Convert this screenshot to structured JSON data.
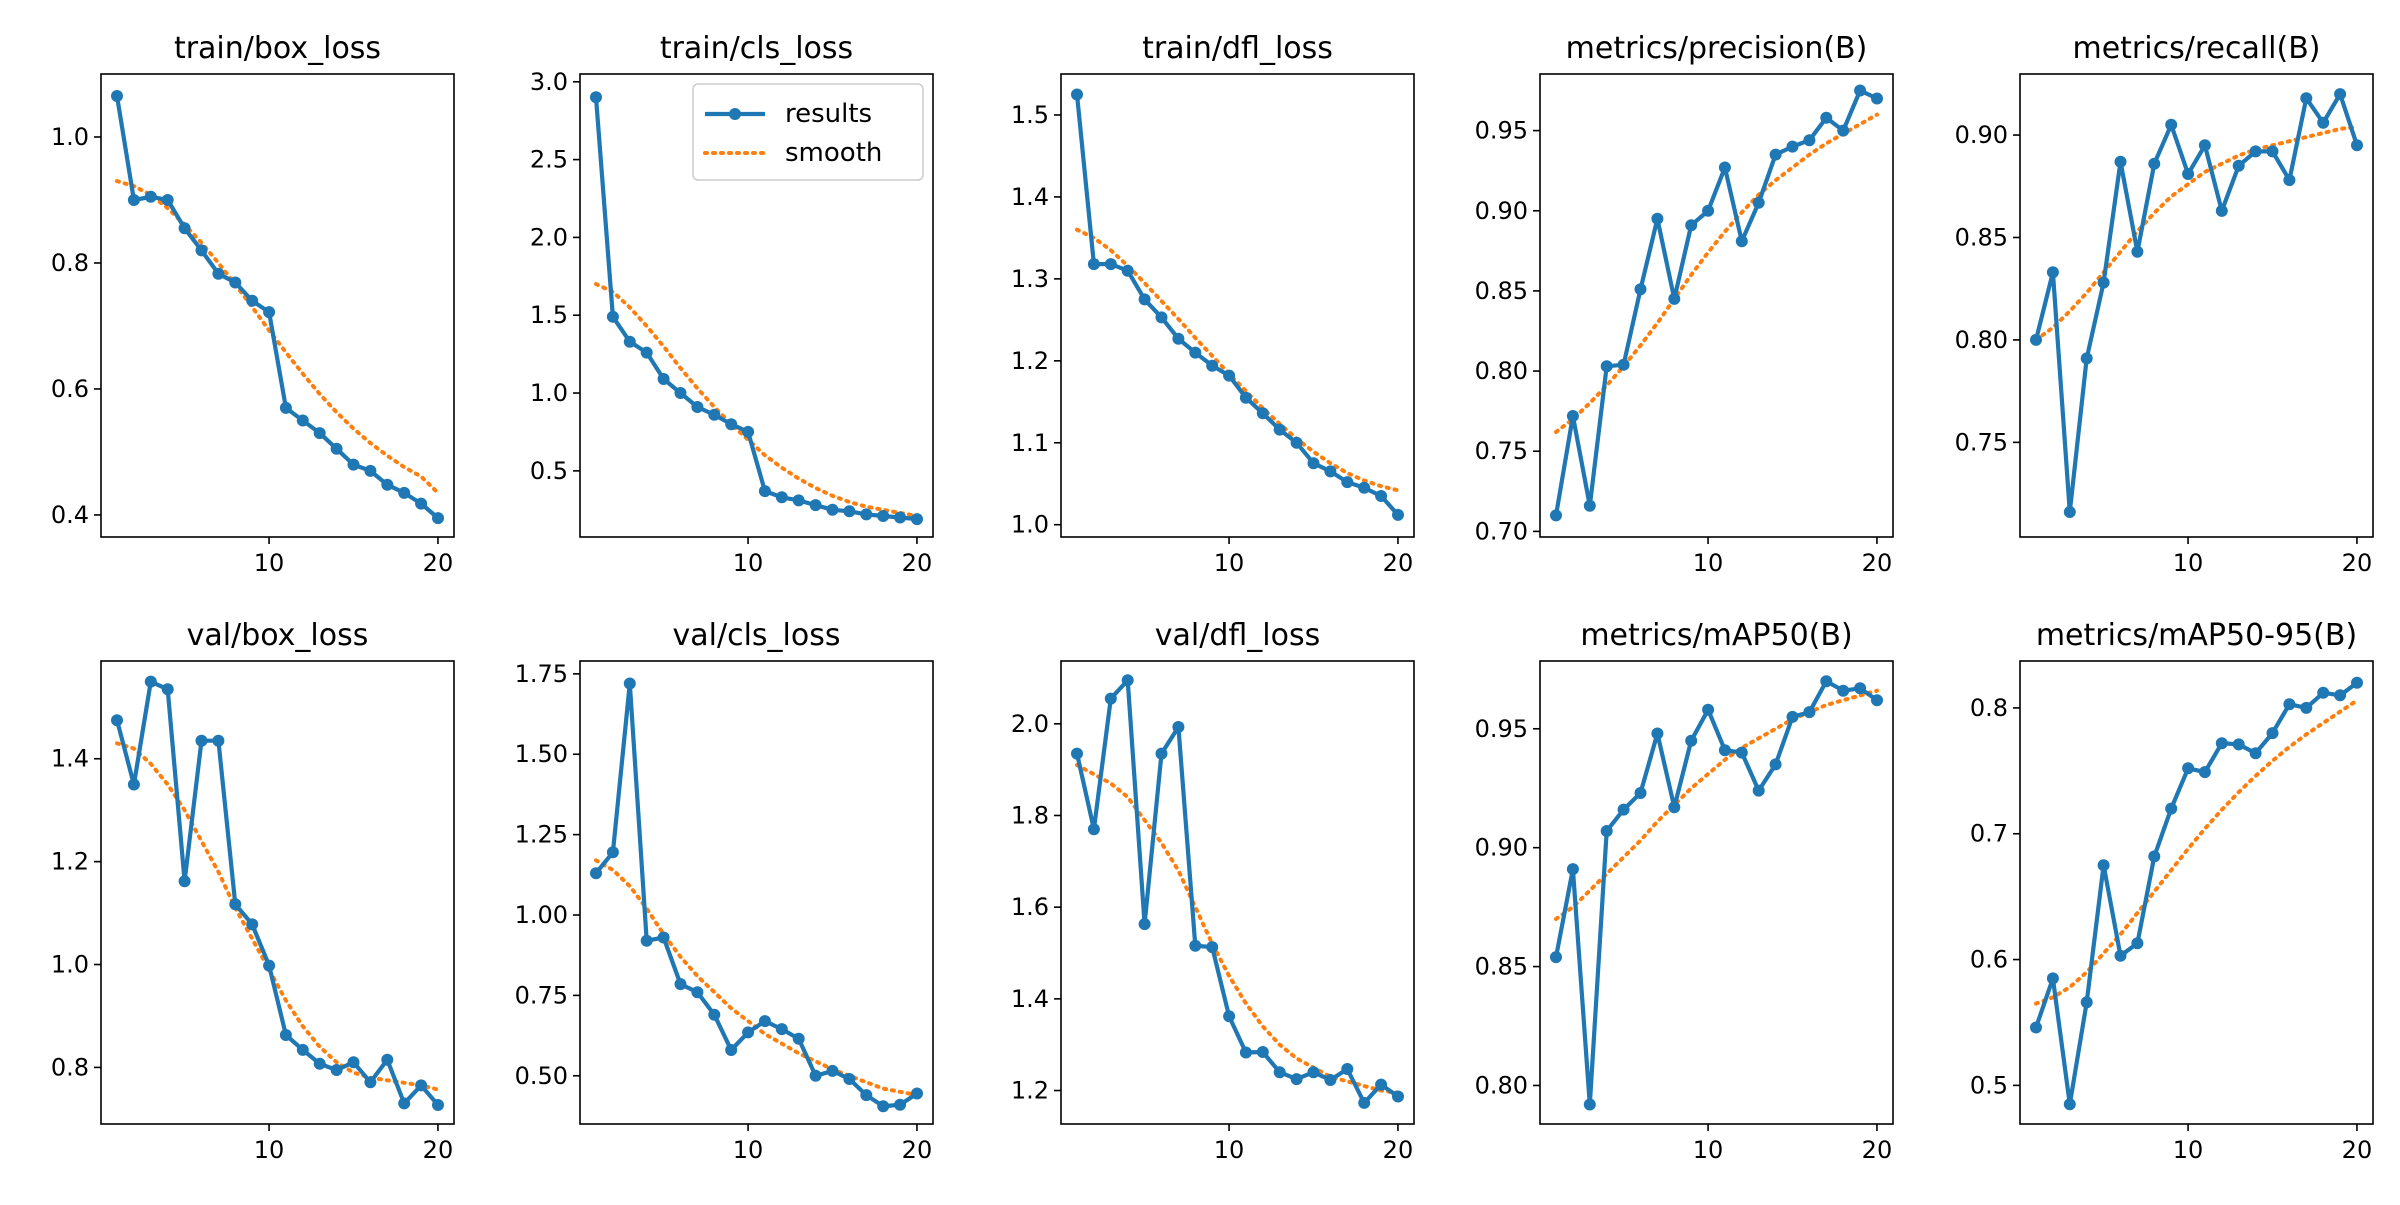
{
  "colors": {
    "results": "#1f77b4",
    "smooth": "#ff7f0e",
    "axes": "#000000",
    "background": "#ffffff"
  },
  "legend": {
    "results_label": "results",
    "smooth_label": "smooth",
    "location": "upper-right",
    "panel": "train/cls_loss"
  },
  "chart_data": [
    {
      "type": "line",
      "title": "train/box_loss",
      "x": [
        1,
        2,
        3,
        4,
        5,
        6,
        7,
        8,
        9,
        10,
        11,
        12,
        13,
        14,
        15,
        16,
        17,
        18,
        19,
        20
      ],
      "xlim": [
        0.05,
        20.95
      ],
      "xticks": [
        10,
        20
      ],
      "ylim": [
        0.365,
        1.1
      ],
      "yticks": [
        0.4,
        0.6,
        0.8,
        1.0
      ],
      "ytick_labels": [
        "0.4",
        "0.6",
        "0.8",
        "1.0"
      ],
      "series": [
        {
          "name": "results",
          "values": [
            1.065,
            0.9,
            0.905,
            0.9,
            0.855,
            0.82,
            0.783,
            0.769,
            0.74,
            0.722,
            0.57,
            0.55,
            0.53,
            0.505,
            0.48,
            0.47,
            0.448,
            0.435,
            0.418,
            0.395
          ]
        },
        {
          "name": "smooth",
          "values": [
            0.93,
            0.922,
            0.908,
            0.887,
            0.861,
            0.832,
            0.8,
            0.766,
            0.73,
            0.693,
            0.658,
            0.624,
            0.592,
            0.563,
            0.537,
            0.514,
            0.494,
            0.476,
            0.461,
            0.435
          ]
        }
      ]
    },
    {
      "type": "line",
      "title": "train/cls_loss",
      "x": [
        1,
        2,
        3,
        4,
        5,
        6,
        7,
        8,
        9,
        10,
        11,
        12,
        13,
        14,
        15,
        16,
        17,
        18,
        19,
        20
      ],
      "xlim": [
        0.05,
        20.95
      ],
      "xticks": [
        10,
        20
      ],
      "ylim": [
        0.075,
        3.05
      ],
      "yticks": [
        0.5,
        1.0,
        1.5,
        2.0,
        2.5,
        3.0
      ],
      "ytick_labels": [
        "0.5",
        "1.0",
        "1.5",
        "2.0",
        "2.5",
        "3.0"
      ],
      "series": [
        {
          "name": "results",
          "values": [
            2.9,
            1.49,
            1.33,
            1.26,
            1.09,
            1.0,
            0.91,
            0.86,
            0.8,
            0.75,
            0.37,
            0.33,
            0.31,
            0.28,
            0.25,
            0.24,
            0.22,
            0.21,
            0.2,
            0.19
          ]
        },
        {
          "name": "smooth",
          "values": [
            1.7,
            1.65,
            1.55,
            1.43,
            1.3,
            1.16,
            1.03,
            0.91,
            0.8,
            0.7,
            0.6,
            0.52,
            0.45,
            0.39,
            0.34,
            0.3,
            0.27,
            0.25,
            0.23,
            0.21
          ]
        }
      ]
    },
    {
      "type": "line",
      "title": "train/dfl_loss",
      "x": [
        1,
        2,
        3,
        4,
        5,
        6,
        7,
        8,
        9,
        10,
        11,
        12,
        13,
        14,
        15,
        16,
        17,
        18,
        19,
        20
      ],
      "xlim": [
        0.05,
        20.95
      ],
      "xticks": [
        10,
        20
      ],
      "ylim": [
        0.985,
        1.55
      ],
      "yticks": [
        1.0,
        1.1,
        1.2,
        1.3,
        1.4,
        1.5
      ],
      "ytick_labels": [
        "1.0",
        "1.1",
        "1.2",
        "1.3",
        "1.4",
        "1.5"
      ],
      "series": [
        {
          "name": "results",
          "values": [
            1.525,
            1.318,
            1.318,
            1.31,
            1.275,
            1.253,
            1.227,
            1.21,
            1.194,
            1.182,
            1.155,
            1.136,
            1.116,
            1.1,
            1.075,
            1.065,
            1.052,
            1.045,
            1.035,
            1.012
          ]
        },
        {
          "name": "smooth",
          "values": [
            1.36,
            1.35,
            1.335,
            1.316,
            1.295,
            1.273,
            1.251,
            1.228,
            1.206,
            1.184,
            1.163,
            1.142,
            1.123,
            1.105,
            1.089,
            1.075,
            1.063,
            1.054,
            1.047,
            1.042
          ]
        }
      ]
    },
    {
      "type": "line",
      "title": "metrics/precision(B)",
      "x": [
        1,
        2,
        3,
        4,
        5,
        6,
        7,
        8,
        9,
        10,
        11,
        12,
        13,
        14,
        15,
        16,
        17,
        18,
        19,
        20
      ],
      "xlim": [
        0.05,
        20.95
      ],
      "xticks": [
        10,
        20
      ],
      "ylim": [
        0.6965,
        0.9853
      ],
      "yticks": [
        0.7,
        0.75,
        0.8,
        0.85,
        0.9,
        0.95
      ],
      "ytick_labels": [
        "0.70",
        "0.75",
        "0.80",
        "0.85",
        "0.90",
        "0.95"
      ],
      "series": [
        {
          "name": "results",
          "values": [
            0.71,
            0.772,
            0.716,
            0.803,
            0.804,
            0.851,
            0.895,
            0.845,
            0.891,
            0.9,
            0.927,
            0.881,
            0.905,
            0.935,
            0.94,
            0.944,
            0.958,
            0.95,
            0.975,
            0.97
          ]
        },
        {
          "name": "smooth",
          "values": [
            0.762,
            0.77,
            0.78,
            0.791,
            0.803,
            0.816,
            0.83,
            0.845,
            0.86,
            0.874,
            0.887,
            0.899,
            0.91,
            0.919,
            0.927,
            0.935,
            0.942,
            0.948,
            0.954,
            0.96
          ]
        }
      ]
    },
    {
      "type": "line",
      "title": "metrics/recall(B)",
      "x": [
        1,
        2,
        3,
        4,
        5,
        6,
        7,
        8,
        9,
        10,
        11,
        12,
        13,
        14,
        15,
        16,
        17,
        18,
        19,
        20
      ],
      "xlim": [
        0.05,
        20.95
      ],
      "xticks": [
        10,
        20
      ],
      "ylim": [
        0.7038,
        0.9298
      ],
      "yticks": [
        0.75,
        0.8,
        0.85,
        0.9
      ],
      "ytick_labels": [
        "0.75",
        "0.80",
        "0.85",
        "0.90"
      ],
      "series": [
        {
          "name": "results",
          "values": [
            0.8,
            0.833,
            0.716,
            0.791,
            0.828,
            0.887,
            0.843,
            0.886,
            0.905,
            0.881,
            0.895,
            0.863,
            0.885,
            0.892,
            0.892,
            0.878,
            0.918,
            0.906,
            0.92,
            0.895
          ]
        },
        {
          "name": "smooth",
          "values": [
            0.8,
            0.806,
            0.814,
            0.823,
            0.833,
            0.843,
            0.853,
            0.862,
            0.87,
            0.876,
            0.882,
            0.886,
            0.89,
            0.893,
            0.895,
            0.897,
            0.899,
            0.901,
            0.903,
            0.904
          ]
        }
      ]
    },
    {
      "type": "line",
      "title": "val/box_loss",
      "x": [
        1,
        2,
        3,
        4,
        5,
        6,
        7,
        8,
        9,
        10,
        11,
        12,
        13,
        14,
        15,
        16,
        17,
        18,
        19,
        20
      ],
      "xlim": [
        0.05,
        20.95
      ],
      "xticks": [
        10,
        20
      ],
      "ylim": [
        0.69,
        1.59
      ],
      "yticks": [
        0.8,
        1.0,
        1.2,
        1.4
      ],
      "ytick_labels": [
        "0.8",
        "1.0",
        "1.2",
        "1.4"
      ],
      "series": [
        {
          "name": "results",
          "values": [
            1.475,
            1.35,
            1.55,
            1.535,
            1.162,
            1.435,
            1.435,
            1.117,
            1.078,
            0.998,
            0.863,
            0.834,
            0.807,
            0.795,
            0.81,
            0.771,
            0.815,
            0.73,
            0.765,
            0.727
          ]
        },
        {
          "name": "smooth",
          "values": [
            1.43,
            1.42,
            1.39,
            1.35,
            1.3,
            1.24,
            1.18,
            1.11,
            1.05,
            0.99,
            0.93,
            0.88,
            0.84,
            0.81,
            0.79,
            0.78,
            0.775,
            0.77,
            0.765,
            0.757
          ]
        }
      ]
    },
    {
      "type": "line",
      "title": "val/cls_loss",
      "x": [
        1,
        2,
        3,
        4,
        5,
        6,
        7,
        8,
        9,
        10,
        11,
        12,
        13,
        14,
        15,
        16,
        17,
        18,
        19,
        20
      ],
      "xlim": [
        0.05,
        20.95
      ],
      "xticks": [
        10,
        20
      ],
      "ylim": [
        0.35,
        1.79
      ],
      "yticks": [
        0.5,
        0.75,
        1.0,
        1.25,
        1.5,
        1.75
      ],
      "ytick_labels": [
        "0.50",
        "0.75",
        "1.00",
        "1.25",
        "1.50",
        "1.75"
      ],
      "series": [
        {
          "name": "results",
          "values": [
            1.13,
            1.195,
            1.72,
            0.92,
            0.93,
            0.785,
            0.76,
            0.69,
            0.58,
            0.635,
            0.67,
            0.645,
            0.615,
            0.5,
            0.515,
            0.49,
            0.44,
            0.405,
            0.41,
            0.445
          ]
        },
        {
          "name": "smooth",
          "values": [
            1.17,
            1.14,
            1.09,
            1.02,
            0.94,
            0.87,
            0.81,
            0.76,
            0.71,
            0.67,
            0.63,
            0.6,
            0.57,
            0.545,
            0.52,
            0.5,
            0.48,
            0.46,
            0.45,
            0.44
          ]
        }
      ]
    },
    {
      "type": "line",
      "title": "val/dfl_loss",
      "x": [
        1,
        2,
        3,
        4,
        5,
        6,
        7,
        8,
        9,
        10,
        11,
        12,
        13,
        14,
        15,
        16,
        17,
        18,
        19,
        20
      ],
      "xlim": [
        0.05,
        20.95
      ],
      "xticks": [
        10,
        20
      ],
      "ylim": [
        1.127,
        2.137
      ],
      "yticks": [
        1.2,
        1.4,
        1.6,
        1.8,
        2.0
      ],
      "ytick_labels": [
        "1.2",
        "1.4",
        "1.6",
        "1.8",
        "2.0"
      ],
      "series": [
        {
          "name": "results",
          "values": [
            1.935,
            1.77,
            2.055,
            2.095,
            1.563,
            1.935,
            1.993,
            1.516,
            1.513,
            1.362,
            1.283,
            1.284,
            1.24,
            1.225,
            1.24,
            1.223,
            1.247,
            1.173,
            1.213,
            1.187
          ]
        },
        {
          "name": "smooth",
          "values": [
            1.91,
            1.89,
            1.87,
            1.84,
            1.79,
            1.74,
            1.68,
            1.6,
            1.52,
            1.45,
            1.39,
            1.34,
            1.3,
            1.27,
            1.25,
            1.23,
            1.22,
            1.21,
            1.2,
            1.195
          ]
        }
      ]
    },
    {
      "type": "line",
      "title": "metrics/mAP50(B)",
      "x": [
        1,
        2,
        3,
        4,
        5,
        6,
        7,
        8,
        9,
        10,
        11,
        12,
        13,
        14,
        15,
        16,
        17,
        18,
        19,
        20
      ],
      "xlim": [
        0.05,
        20.95
      ],
      "xticks": [
        10,
        20
      ],
      "ylim": [
        0.7838,
        0.9785
      ],
      "yticks": [
        0.8,
        0.85,
        0.9,
        0.95
      ],
      "ytick_labels": [
        "0.80",
        "0.85",
        "0.90",
        "0.95"
      ],
      "series": [
        {
          "name": "results",
          "values": [
            0.854,
            0.891,
            0.792,
            0.907,
            0.916,
            0.923,
            0.948,
            0.917,
            0.945,
            0.958,
            0.941,
            0.94,
            0.924,
            0.935,
            0.955,
            0.957,
            0.97,
            0.966,
            0.967,
            0.962
          ]
        },
        {
          "name": "smooth",
          "values": [
            0.87,
            0.875,
            0.882,
            0.889,
            0.896,
            0.903,
            0.911,
            0.918,
            0.925,
            0.931,
            0.937,
            0.942,
            0.946,
            0.95,
            0.954,
            0.957,
            0.96,
            0.962,
            0.964,
            0.966
          ]
        }
      ]
    },
    {
      "type": "line",
      "title": "metrics/mAP50-95(B)",
      "x": [
        1,
        2,
        3,
        4,
        5,
        6,
        7,
        8,
        9,
        10,
        11,
        12,
        13,
        14,
        15,
        16,
        17,
        18,
        19,
        20
      ],
      "xlim": [
        0.05,
        20.95
      ],
      "xticks": [
        10,
        20
      ],
      "ylim": [
        0.4693,
        0.8373
      ],
      "yticks": [
        0.5,
        0.6,
        0.7,
        0.8
      ],
      "ytick_labels": [
        "0.5",
        "0.6",
        "0.7",
        "0.8"
      ],
      "series": [
        {
          "name": "results",
          "values": [
            0.546,
            0.585,
            0.485,
            0.566,
            0.675,
            0.603,
            0.613,
            0.682,
            0.72,
            0.752,
            0.749,
            0.772,
            0.771,
            0.764,
            0.78,
            0.803,
            0.8,
            0.812,
            0.81,
            0.82
          ]
        },
        {
          "name": "smooth",
          "values": [
            0.565,
            0.57,
            0.578,
            0.59,
            0.605,
            0.62,
            0.637,
            0.654,
            0.671,
            0.688,
            0.704,
            0.719,
            0.733,
            0.746,
            0.758,
            0.769,
            0.779,
            0.788,
            0.797,
            0.806
          ]
        }
      ]
    }
  ]
}
